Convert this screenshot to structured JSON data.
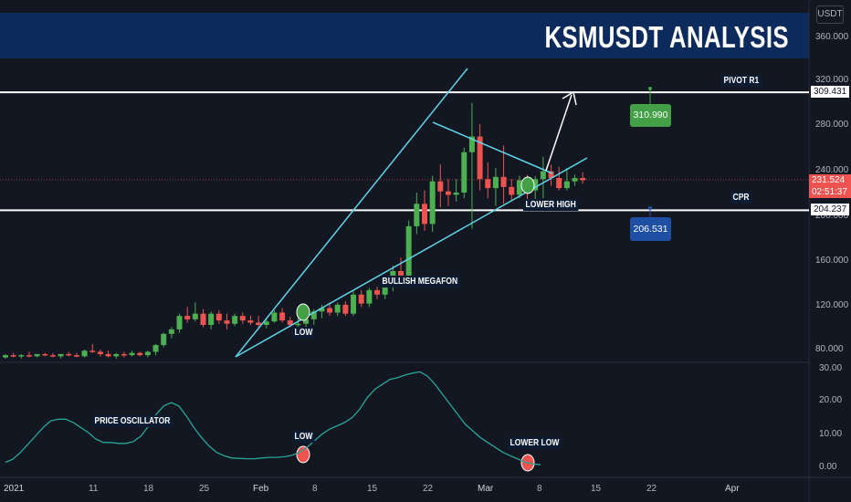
{
  "header": {
    "title": "KSMUSDT ANALYSIS",
    "currency": "USDT"
  },
  "price_axis": {
    "ticks": [
      "360.000",
      "320.000",
      "280.000",
      "240.000",
      "200.000",
      "160.000",
      "120.000",
      "80.000"
    ]
  },
  "oscillator_axis": {
    "ticks": [
      "30.00",
      "20.00",
      "10.00",
      "0.00"
    ]
  },
  "time_axis": {
    "labels": [
      "2021",
      "11",
      "18",
      "25",
      "Feb",
      "8",
      "15",
      "22",
      "Mar",
      "8",
      "15",
      "22",
      "Apr"
    ]
  },
  "price_tags": {
    "pivot_r1": "309.431",
    "current_price": "231.524",
    "countdown": "02:51:37",
    "cpr": "204.237"
  },
  "annotations": {
    "pivot_r1": "PIVOT R1",
    "cpr": "CPR",
    "lower_high": "LOWER HIGH",
    "bullish_megafon": "BULLISH MEGAFON",
    "low_price": "LOW",
    "price_oscillator": "PRICE OSCILLATOR",
    "low_oscillator": "LOW",
    "lower_low": "LOWER LOW"
  },
  "value_boxes": {
    "target": "310.990",
    "support": "206.531"
  },
  "colors": {
    "background": "#131722",
    "banner": "#0d2a5c",
    "up": "#26a69a",
    "up_candle": "#4caf50",
    "down_candle": "#ef5350",
    "trendline": "#5fd4e8",
    "target_box": "#43a047",
    "support_box": "#1e4fa3",
    "oscillator_line": "#26a69a"
  },
  "chart_data": [
    {
      "type": "candlestick",
      "title": "KSMUSDT ANALYSIS",
      "ylim": [
        70,
        380
      ],
      "candles": [
        [
          73,
          76,
          72,
          75
        ],
        [
          75,
          77,
          73,
          74
        ],
        [
          74,
          76,
          72,
          75
        ],
        [
          75,
          78,
          73,
          74
        ],
        [
          74,
          76,
          73,
          76
        ],
        [
          76,
          77,
          74,
          75
        ],
        [
          75,
          77,
          73,
          74
        ],
        [
          74,
          76,
          72,
          76
        ],
        [
          76,
          78,
          74,
          75
        ],
        [
          75,
          77,
          73,
          74
        ],
        [
          74,
          80,
          73,
          79
        ],
        [
          79,
          85,
          77,
          78
        ],
        [
          78,
          80,
          74,
          76
        ],
        [
          76,
          79,
          73,
          74
        ],
        [
          74,
          77,
          72,
          76
        ],
        [
          76,
          78,
          73,
          75
        ],
        [
          75,
          79,
          74,
          77
        ],
        [
          77,
          78,
          74,
          75
        ],
        [
          75,
          79,
          73,
          78
        ],
        [
          78,
          85,
          75,
          84
        ],
        [
          84,
          95,
          82,
          94
        ],
        [
          94,
          100,
          90,
          98
        ],
        [
          98,
          112,
          95,
          110
        ],
        [
          110,
          118,
          104,
          107
        ],
        [
          107,
          122,
          105,
          112
        ],
        [
          112,
          116,
          100,
          102
        ],
        [
          102,
          114,
          98,
          112
        ],
        [
          112,
          115,
          103,
          106
        ],
        [
          106,
          112,
          98,
          103
        ],
        [
          103,
          112,
          101,
          110
        ],
        [
          110,
          113,
          103,
          106
        ],
        [
          106,
          110,
          102,
          104
        ],
        [
          104,
          110,
          100,
          102
        ],
        [
          102,
          107,
          99,
          105
        ],
        [
          105,
          115,
          104,
          113
        ],
        [
          113,
          117,
          104,
          106
        ],
        [
          106,
          109,
          100,
          102
        ],
        [
          102,
          108,
          98,
          103
        ],
        [
          103,
          110,
          100,
          107
        ],
        [
          107,
          116,
          102,
          114
        ],
        [
          114,
          120,
          108,
          117
        ],
        [
          117,
          122,
          110,
          113
        ],
        [
          113,
          122,
          110,
          120
        ],
        [
          120,
          123,
          110,
          112
        ],
        [
          112,
          132,
          110,
          129
        ],
        [
          129,
          133,
          118,
          121
        ],
        [
          121,
          135,
          118,
          133
        ],
        [
          133,
          136,
          125,
          129
        ],
        [
          129,
          142,
          125,
          140
        ],
        [
          140,
          155,
          132,
          150
        ],
        [
          150,
          162,
          141,
          146
        ],
        [
          146,
          195,
          143,
          190
        ],
        [
          190,
          220,
          183,
          210
        ],
        [
          210,
          222,
          186,
          192
        ],
        [
          192,
          235,
          185,
          230
        ],
        [
          230,
          245,
          207,
          221
        ],
        [
          221,
          232,
          208,
          218
        ],
        [
          218,
          232,
          212,
          220
        ],
        [
          220,
          260,
          215,
          256
        ],
        [
          256,
          300,
          188,
          270
        ],
        [
          270,
          281,
          222,
          232
        ],
        [
          232,
          247,
          215,
          224
        ],
        [
          224,
          242,
          208,
          234
        ],
        [
          234,
          262,
          210,
          225
        ],
        [
          225,
          232,
          212,
          218
        ],
        [
          218,
          235,
          215,
          231
        ],
        [
          231,
          236,
          212,
          222
        ],
        [
          222,
          235,
          210,
          232
        ],
        [
          232,
          252,
          215,
          239
        ],
        [
          239,
          245,
          226,
          233
        ],
        [
          233,
          243,
          222,
          224
        ],
        [
          224,
          242,
          222,
          230
        ],
        [
          230,
          236,
          226,
          233
        ],
        [
          233,
          238,
          228,
          231
        ]
      ]
    },
    {
      "type": "line",
      "title": "PRICE OSCILLATOR",
      "ylim": [
        -3,
        31
      ],
      "y": [
        1.5,
        2.5,
        4.5,
        7,
        9.5,
        12,
        14,
        14.5,
        14.5,
        13.5,
        12,
        10.5,
        8.5,
        7.5,
        7.5,
        7.2,
        7.2,
        7.8,
        9.5,
        12.5,
        16,
        18.5,
        19.5,
        18.5,
        15.5,
        12,
        9,
        6.5,
        4.5,
        3.5,
        2.8,
        2.7,
        2.6,
        2.6,
        2.8,
        3,
        3,
        3.2,
        3.6,
        4.5,
        6,
        8,
        10,
        11.5,
        12.5,
        13.5,
        15,
        17.5,
        21,
        23.5,
        25,
        26.5,
        27,
        27.8,
        28.4,
        28.8,
        27.5,
        25,
        22,
        19,
        16,
        13,
        11,
        9,
        7.5,
        6,
        4.5,
        3.5,
        2.5,
        1.5,
        1,
        0.8
      ]
    }
  ]
}
